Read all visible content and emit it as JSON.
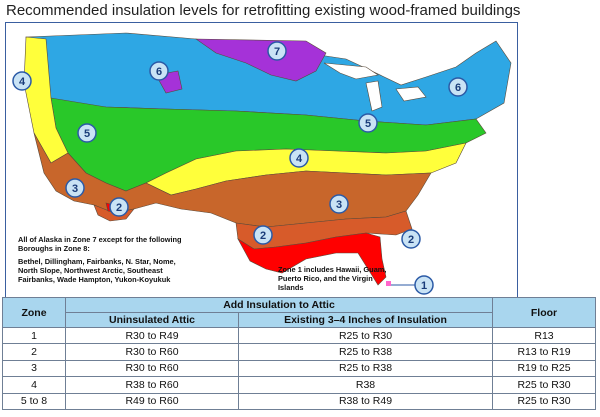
{
  "title": "Recommended insulation levels for retrofitting existing wood-framed buildings",
  "map": {
    "zone_colors": {
      "1": "#ff0000",
      "2": "#d75b2a",
      "3": "#c8662b",
      "4": "#ffff3b",
      "5": "#29c829",
      "6": "#2ea7e4",
      "7": "#a532d8"
    },
    "badges": [
      "1",
      "2",
      "2",
      "2",
      "3",
      "3",
      "4",
      "4",
      "5",
      "5",
      "6",
      "6",
      "7"
    ],
    "alaska_note_1": "All of Alaska in Zone 7 except for the following Boroughs in Zone 8:",
    "alaska_note_2": "Bethel, Dillingham, Fairbanks, N. Star, Nome, North Slope, Northwest Arctic, Southeast Fairbanks, Wade Hampton, Yukon-Koyukuk",
    "zone1_note": "Zone 1 includes Hawaii, Guam, Puerto Rico, and the Virgin Islands"
  },
  "table": {
    "header": {
      "zone": "Zone",
      "add_attic": "Add Insulation to Attic",
      "floor": "Floor",
      "uninsulated": "Uninsulated Attic",
      "existing": "Existing 3–4 Inches of Insulation"
    },
    "rows": [
      {
        "zone": "1",
        "uninsulated": "R30 to R49",
        "existing": "R25 to R30",
        "floor": "R13"
      },
      {
        "zone": "2",
        "uninsulated": "R30 to R60",
        "existing": "R25 to R38",
        "floor": "R13 to R19"
      },
      {
        "zone": "3",
        "uninsulated": "R30 to R60",
        "existing": "R25 to R38",
        "floor": "R19 to R25"
      },
      {
        "zone": "4",
        "uninsulated": "R38 to R60",
        "existing": "R38",
        "floor": "R25 to R30"
      },
      {
        "zone": "5 to 8",
        "uninsulated": "R49 to R60",
        "existing": "R38 to R49",
        "floor": "R25 to R30"
      }
    ]
  }
}
